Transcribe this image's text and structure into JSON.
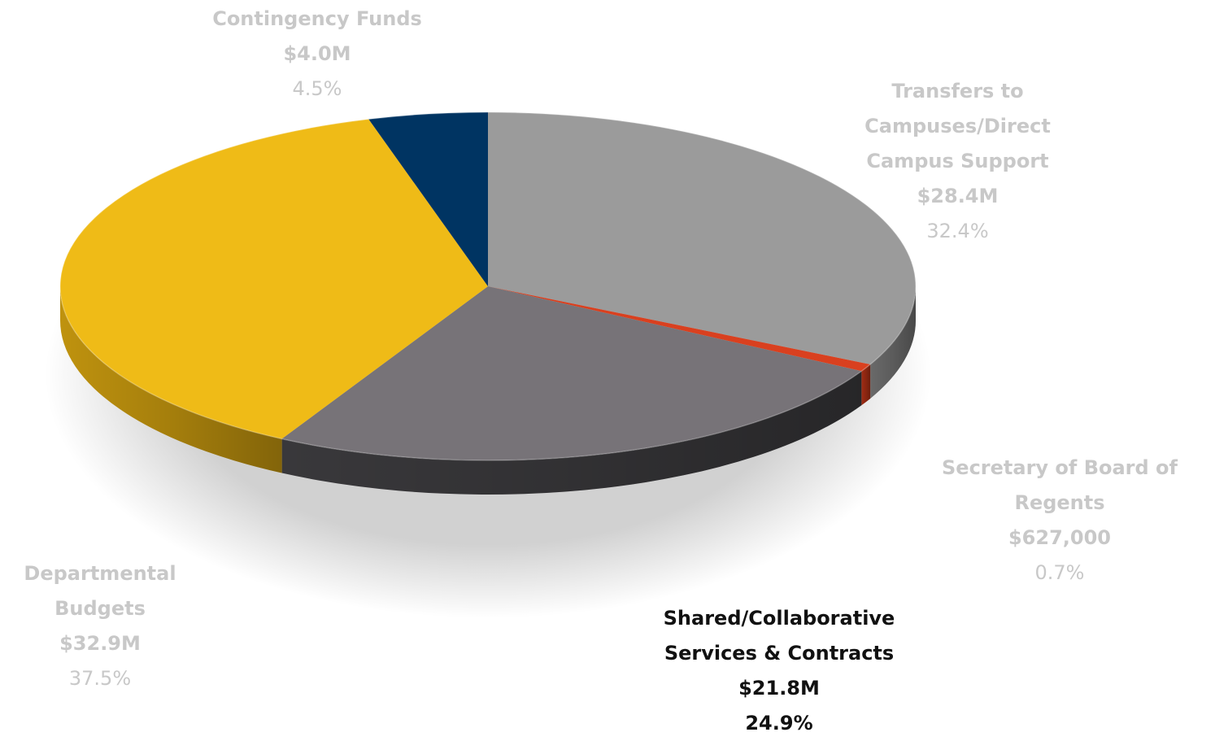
{
  "chart_data": {
    "type": "pie",
    "style": "3d",
    "title": "",
    "slices": [
      {
        "key": "transfers",
        "label_lines": [
          "Transfers to",
          "Campuses/Direct",
          "Campus Support"
        ],
        "amount": "$28.4M",
        "percent_label": "32.4%",
        "value": 32.4,
        "color": "#9b9b9b",
        "side_color": "#6f6f6f",
        "highlighted": false
      },
      {
        "key": "secretary",
        "label_lines": [
          "Secretary of Board of",
          "Regents"
        ],
        "amount": "$627,000",
        "percent_label": "0.7%",
        "value": 0.7,
        "color": "#d9401f",
        "side_color": "#a82e14",
        "highlighted": false
      },
      {
        "key": "shared",
        "label_lines": [
          "Shared/Collaborative",
          "Services & Contracts"
        ],
        "amount": "$21.8M",
        "percent_label": "24.9%",
        "value": 24.9,
        "color": "#777378",
        "side_color": "#3c3b3e",
        "highlighted": true
      },
      {
        "key": "departmental",
        "label_lines": [
          "Departmental",
          "Budgets"
        ],
        "amount": "$32.9M",
        "percent_label": "37.5%",
        "value": 37.5,
        "color": "#efbb17",
        "side_color": "#c99a0f",
        "highlighted": false
      },
      {
        "key": "contingency",
        "label_lines": [
          "Contingency Funds"
        ],
        "amount": "$4.0M",
        "percent_label": "4.5%",
        "value": 4.5,
        "color": "#003462",
        "side_color": "#00233f",
        "highlighted": false
      }
    ]
  }
}
